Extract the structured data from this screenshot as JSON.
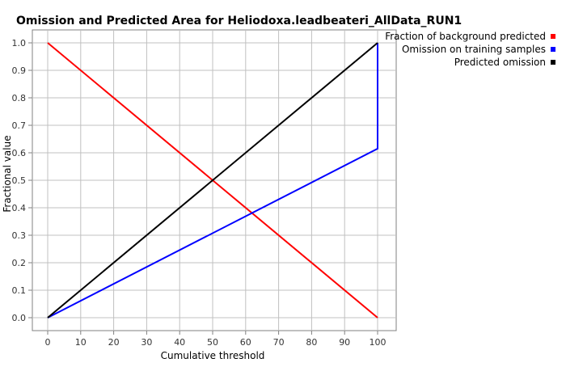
{
  "chart_data": {
    "type": "line",
    "title": "Omission and Predicted Area for Heliodoxa.leadbeateri_AllData_RUN1",
    "xlabel": "Cumulative threshold",
    "ylabel": "Fractional value",
    "xlim": [
      0,
      100
    ],
    "ylim": [
      0,
      1
    ],
    "x_ticks": [
      0,
      10,
      20,
      30,
      40,
      50,
      60,
      70,
      80,
      90,
      100
    ],
    "y_ticks": [
      0.0,
      0.1,
      0.2,
      0.3,
      0.4,
      0.5,
      0.6,
      0.7,
      0.8,
      0.9,
      1.0
    ],
    "x_tick_labels": [
      "0",
      "10",
      "20",
      "30",
      "40",
      "50",
      "60",
      "70",
      "80",
      "90",
      "100"
    ],
    "y_tick_labels": [
      "0.0",
      "0.1",
      "0.2",
      "0.3",
      "0.4",
      "0.5",
      "0.6",
      "0.7",
      "0.8",
      "0.9",
      "1.0"
    ],
    "grid": true,
    "legend_position": "top-right",
    "series": [
      {
        "name": "Fraction of background predicted",
        "color": "#ff0000",
        "points": [
          [
            0,
            1.0
          ],
          [
            100,
            0.0
          ]
        ]
      },
      {
        "name": "Omission on training samples",
        "color": "#0000ff",
        "points": [
          [
            0,
            0.0
          ],
          [
            100,
            0.615
          ],
          [
            100,
            1.0
          ]
        ]
      },
      {
        "name": "Predicted omission",
        "color": "#000000",
        "points": [
          [
            0,
            0.0
          ],
          [
            100,
            1.0
          ]
        ]
      }
    ]
  }
}
